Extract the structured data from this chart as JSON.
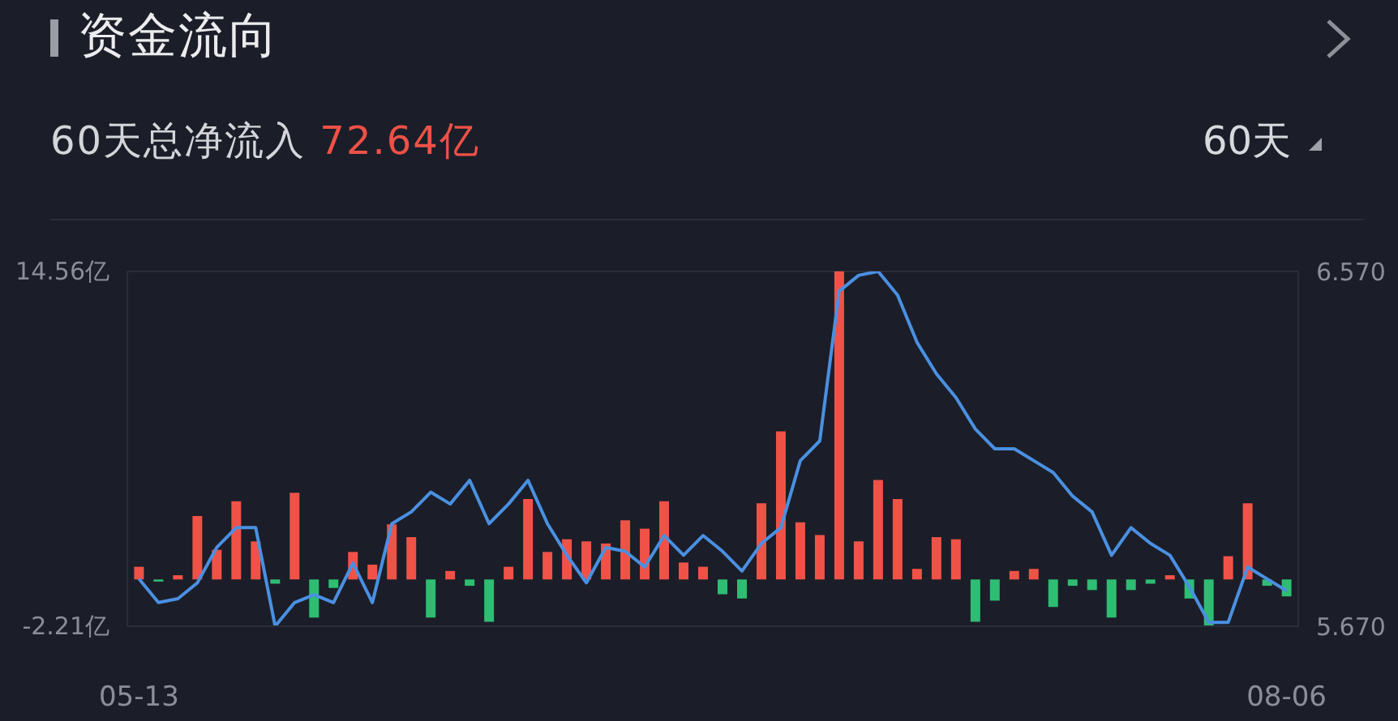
{
  "chart_data": {
    "type": "bar",
    "title": "资金流向",
    "subtitle": "60天总净流入 72.64亿",
    "annotations": [
      "60天"
    ],
    "categories": [
      "05-13",
      null,
      null,
      null,
      null,
      null,
      null,
      null,
      null,
      null,
      null,
      null,
      null,
      null,
      null,
      null,
      null,
      null,
      null,
      null,
      null,
      null,
      null,
      null,
      null,
      null,
      null,
      null,
      null,
      null,
      null,
      null,
      null,
      null,
      null,
      null,
      null,
      null,
      null,
      null,
      null,
      null,
      null,
      null,
      null,
      null,
      null,
      null,
      null,
      null,
      null,
      null,
      null,
      null,
      null,
      null,
      null,
      null,
      null,
      "08-06"
    ],
    "series": [
      {
        "values": [
          0.6,
          -0.1,
          0.2,
          3.0,
          1.4,
          3.7,
          1.8,
          -0.2,
          4.1,
          -1.8,
          -0.4,
          1.3,
          0.7,
          2.6,
          2.0,
          -1.8,
          0.4,
          -0.3,
          -2.0,
          0.6,
          3.8,
          1.3,
          1.9,
          1.8,
          1.7,
          2.8,
          2.4,
          3.7,
          0.8,
          0.6,
          -0.7,
          -0.9,
          3.6,
          7.0,
          2.7,
          2.1,
          14.56,
          1.8,
          4.7,
          3.8,
          0.5,
          2.0,
          1.9,
          -2.0,
          -1.0,
          0.4,
          0.5,
          -1.3,
          -0.3,
          -0.5,
          -1.8,
          -0.5,
          -0.2,
          0.2,
          -0.9,
          -2.21,
          1.1,
          3.6,
          -0.3,
          -0.8
        ],
        "colors": [
          "#f05248",
          "#2ebd73",
          "#f05248",
          "#f05248",
          "#f05248",
          "#f05248",
          "#f05248",
          "#2ebd73",
          "#f05248",
          "#2ebd73",
          "#2ebd73",
          "#f05248",
          "#f05248",
          "#f05248",
          "#f05248",
          "#2ebd73",
          "#f05248",
          "#2ebd73",
          "#2ebd73",
          "#f05248",
          "#f05248",
          "#f05248",
          "#f05248",
          "#f05248",
          "#f05248",
          "#f05248",
          "#f05248",
          "#f05248",
          "#f05248",
          "#f05248",
          "#2ebd73",
          "#2ebd73",
          "#f05248",
          "#f05248",
          "#f05248",
          "#f05248",
          "#f05248",
          "#f05248",
          "#f05248",
          "#f05248",
          "#f05248",
          "#f05248",
          "#f05248",
          "#2ebd73",
          "#2ebd73",
          "#f05248",
          "#f05248",
          "#2ebd73",
          "#2ebd73",
          "#2ebd73",
          "#2ebd73",
          "#2ebd73",
          "#2ebd73",
          "#f05248",
          "#2ebd73",
          "#2ebd73",
          "#f05248",
          "#f05248",
          "#2ebd73",
          "#2ebd73"
        ]
      },
      {
        "type": "line",
        "axis": "y2",
        "color": "#4a90e2",
        "values": [
          5.79,
          5.73,
          5.74,
          5.78,
          5.87,
          5.92,
          5.92,
          5.67,
          5.73,
          5.75,
          5.73,
          5.83,
          5.73,
          5.93,
          5.96,
          6.01,
          5.98,
          6.04,
          5.93,
          5.98,
          6.04,
          5.93,
          5.85,
          5.78,
          5.87,
          5.86,
          5.82,
          5.9,
          5.85,
          5.9,
          5.86,
          5.81,
          5.88,
          5.92,
          6.09,
          6.14,
          6.52,
          6.56,
          6.57,
          6.51,
          6.39,
          6.31,
          6.25,
          6.17,
          6.12,
          6.12,
          6.09,
          6.06,
          6.0,
          5.96,
          5.85,
          5.92,
          5.88,
          5.85,
          5.77,
          5.68,
          5.68,
          5.82,
          5.79,
          5.76
        ]
      }
    ],
    "ylim": [
      -2.21,
      14.56
    ],
    "yticks": [
      {
        "value": 14.56,
        "label": "14.56亿"
      },
      {
        "value": -2.21,
        "label": "-2.21亿"
      }
    ],
    "y2lim": [
      5.67,
      6.57
    ],
    "y2ticks": [
      {
        "value": 6.57,
        "label": "6.570"
      },
      {
        "value": 5.67,
        "label": "5.670"
      }
    ],
    "grid": false
  }
}
